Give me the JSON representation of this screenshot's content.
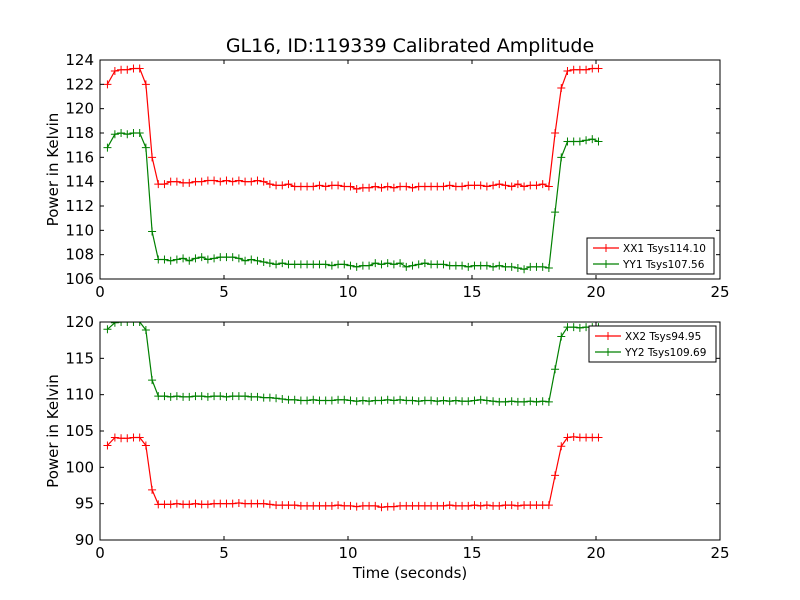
{
  "figure": {
    "title": "GL16, ID:119339 Calibrated Amplitude",
    "xlabel": "Time (seconds)"
  },
  "colors": {
    "red": "#ff0000",
    "green": "#008000"
  },
  "chart_data": [
    {
      "type": "line",
      "ylabel": "Power in Kelvin",
      "xlabel": "",
      "xlim": [
        0,
        25
      ],
      "ylim": [
        106,
        124
      ],
      "xticks": [
        "0",
        "5",
        "10",
        "15",
        "20",
        "25"
      ],
      "yticks": [
        "106",
        "108",
        "110",
        "112",
        "114",
        "116",
        "118",
        "120",
        "122",
        "124"
      ],
      "legend_position": "lower-right",
      "x": [
        0.3,
        0.6,
        0.85,
        1.1,
        1.35,
        1.6,
        1.85,
        2.1,
        2.35,
        2.6,
        2.85,
        3.1,
        3.35,
        3.6,
        3.85,
        4.1,
        4.35,
        4.6,
        4.85,
        5.1,
        5.35,
        5.6,
        5.85,
        6.1,
        6.35,
        6.6,
        6.85,
        7.1,
        7.35,
        7.6,
        7.85,
        8.1,
        8.35,
        8.6,
        8.85,
        9.1,
        9.35,
        9.6,
        9.85,
        10.1,
        10.35,
        10.6,
        10.85,
        11.1,
        11.35,
        11.6,
        11.85,
        12.1,
        12.35,
        12.6,
        12.85,
        13.1,
        13.35,
        13.6,
        13.85,
        14.1,
        14.35,
        14.6,
        14.85,
        15.1,
        15.35,
        15.6,
        15.85,
        16.1,
        16.35,
        16.6,
        16.85,
        17.1,
        17.35,
        17.6,
        17.85,
        18.1,
        18.35,
        18.6,
        18.85,
        19.1,
        19.35,
        19.6,
        19.85,
        20.1
      ],
      "series": [
        {
          "name": "XX1 Tsys114.10",
          "color": "#ff0000",
          "values": [
            122.0,
            123.1,
            123.2,
            123.2,
            123.3,
            123.3,
            122.0,
            116.0,
            113.8,
            113.8,
            114.0,
            114.0,
            113.9,
            113.9,
            114.0,
            114.0,
            114.1,
            114.1,
            114.0,
            114.1,
            114.0,
            114.1,
            114.0,
            114.0,
            114.1,
            114.0,
            113.8,
            113.7,
            113.7,
            113.8,
            113.6,
            113.6,
            113.6,
            113.6,
            113.7,
            113.6,
            113.7,
            113.7,
            113.6,
            113.6,
            113.4,
            113.5,
            113.5,
            113.6,
            113.5,
            113.6,
            113.5,
            113.6,
            113.6,
            113.5,
            113.6,
            113.6,
            113.6,
            113.6,
            113.6,
            113.7,
            113.6,
            113.6,
            113.7,
            113.7,
            113.7,
            113.6,
            113.7,
            113.8,
            113.7,
            113.6,
            113.8,
            113.6,
            113.7,
            113.7,
            113.8,
            113.6,
            118.0,
            121.7,
            123.1,
            123.2,
            123.2,
            123.2,
            123.3,
            123.3
          ]
        },
        {
          "name": "YY1 Tsys107.56",
          "color": "#008000",
          "values": [
            116.8,
            117.9,
            118.0,
            117.9,
            118.0,
            118.0,
            116.8,
            109.9,
            107.6,
            107.6,
            107.5,
            107.6,
            107.7,
            107.5,
            107.7,
            107.8,
            107.6,
            107.7,
            107.8,
            107.8,
            107.8,
            107.7,
            107.5,
            107.6,
            107.5,
            107.4,
            107.3,
            107.2,
            107.3,
            107.2,
            107.2,
            107.2,
            107.2,
            107.2,
            107.2,
            107.2,
            107.1,
            107.2,
            107.2,
            107.1,
            107.0,
            107.1,
            107.1,
            107.3,
            107.2,
            107.3,
            107.2,
            107.3,
            107.0,
            107.1,
            107.2,
            107.3,
            107.2,
            107.2,
            107.2,
            107.1,
            107.1,
            107.1,
            107.0,
            107.1,
            107.1,
            107.1,
            107.0,
            107.1,
            107.0,
            107.0,
            106.9,
            106.8,
            107.0,
            107.0,
            107.0,
            106.9,
            111.5,
            116.0,
            117.3,
            117.3,
            117.3,
            117.4,
            117.5,
            117.3
          ]
        }
      ]
    },
    {
      "type": "line",
      "ylabel": "Power in Kelvin",
      "xlabel": "Time (seconds)",
      "xlim": [
        0,
        25
      ],
      "ylim": [
        90,
        120
      ],
      "xticks": [
        "0",
        "5",
        "10",
        "15",
        "20",
        "25"
      ],
      "yticks": [
        "90",
        "95",
        "100",
        "105",
        "110",
        "115",
        "120"
      ],
      "legend_position": "upper-right",
      "x": [
        0.3,
        0.6,
        0.85,
        1.1,
        1.35,
        1.6,
        1.85,
        2.1,
        2.35,
        2.6,
        2.85,
        3.1,
        3.35,
        3.6,
        3.85,
        4.1,
        4.35,
        4.6,
        4.85,
        5.1,
        5.35,
        5.6,
        5.85,
        6.1,
        6.35,
        6.6,
        6.85,
        7.1,
        7.35,
        7.6,
        7.85,
        8.1,
        8.35,
        8.6,
        8.85,
        9.1,
        9.35,
        9.6,
        9.85,
        10.1,
        10.35,
        10.6,
        10.85,
        11.1,
        11.35,
        11.6,
        11.85,
        12.1,
        12.35,
        12.6,
        12.85,
        13.1,
        13.35,
        13.6,
        13.85,
        14.1,
        14.35,
        14.6,
        14.85,
        15.1,
        15.35,
        15.6,
        15.85,
        16.1,
        16.35,
        16.6,
        16.85,
        17.1,
        17.35,
        17.6,
        17.85,
        18.1,
        18.35,
        18.6,
        18.85,
        19.1,
        19.35,
        19.6,
        19.85,
        20.1
      ],
      "series": [
        {
          "name": "XX2 Tsys94.95",
          "color": "#ff0000",
          "values": [
            103.0,
            104.1,
            104.0,
            104.0,
            104.1,
            104.1,
            103.0,
            96.9,
            94.9,
            94.9,
            94.9,
            95.0,
            94.9,
            94.9,
            95.0,
            94.9,
            94.9,
            95.0,
            95.0,
            95.0,
            95.0,
            95.1,
            95.0,
            95.0,
            95.0,
            95.0,
            94.9,
            94.8,
            94.8,
            94.8,
            94.8,
            94.7,
            94.7,
            94.7,
            94.7,
            94.7,
            94.7,
            94.8,
            94.7,
            94.7,
            94.6,
            94.7,
            94.7,
            94.7,
            94.5,
            94.6,
            94.6,
            94.7,
            94.7,
            94.7,
            94.7,
            94.7,
            94.7,
            94.7,
            94.7,
            94.8,
            94.7,
            94.7,
            94.7,
            94.8,
            94.7,
            94.8,
            94.7,
            94.7,
            94.8,
            94.8,
            94.7,
            94.8,
            94.8,
            94.8,
            94.8,
            94.8,
            98.9,
            102.9,
            104.1,
            104.2,
            104.1,
            104.1,
            104.1,
            104.1
          ]
        },
        {
          "name": "YY2 Tsys109.69",
          "color": "#008000",
          "values": [
            119.0,
            119.9,
            120.0,
            120.0,
            120.0,
            120.0,
            118.9,
            112.0,
            109.8,
            109.8,
            109.7,
            109.8,
            109.7,
            109.7,
            109.8,
            109.8,
            109.7,
            109.8,
            109.8,
            109.7,
            109.8,
            109.8,
            109.8,
            109.7,
            109.7,
            109.6,
            109.6,
            109.5,
            109.4,
            109.3,
            109.3,
            109.2,
            109.2,
            109.3,
            109.2,
            109.2,
            109.2,
            109.3,
            109.3,
            109.2,
            109.1,
            109.2,
            109.1,
            109.2,
            109.2,
            109.3,
            109.2,
            109.3,
            109.2,
            109.2,
            109.1,
            109.2,
            109.2,
            109.1,
            109.2,
            109.1,
            109.2,
            109.1,
            109.1,
            109.2,
            109.3,
            109.2,
            109.1,
            109.0,
            109.0,
            109.1,
            109.0,
            109.0,
            109.1,
            109.0,
            109.1,
            109.0,
            113.5,
            118.0,
            119.3,
            119.3,
            119.2,
            119.3,
            119.3,
            119.3
          ]
        }
      ]
    }
  ]
}
